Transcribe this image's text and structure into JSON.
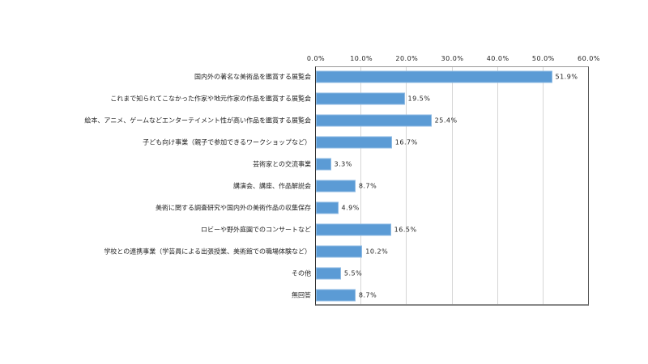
{
  "chart_data": {
    "type": "bar",
    "orientation": "horizontal",
    "title": "",
    "xlabel": "",
    "ylabel": "",
    "xlim": [
      0,
      60
    ],
    "x_ticks": [
      "0.0%",
      "10.0%",
      "20.0%",
      "30.0%",
      "40.0%",
      "50.0%",
      "60.0%"
    ],
    "x_tick_values": [
      0,
      10,
      20,
      30,
      40,
      50,
      60
    ],
    "x_axis_position": "top",
    "grid": true,
    "legend": null,
    "bar_color": "#5b9bd5",
    "categories": [
      "国内外の著名な美術品を鑑賞する展覧会",
      "これまで知られてこなかった作家や地元作家の作品を鑑賞する展覧会",
      "絵本、アニメ、ゲームなどエンターテイメント性が高い作品を鑑賞する展覧会",
      "子ども向け事業（親子で参加できるワークショップなど）",
      "芸術家との交流事業",
      "講演会、講座、作品解説会",
      "美術に関する調査研究や国内外の美術作品の収集保存",
      "ロビーや野外庭園でのコンサートなど",
      "学校との連携事業（学芸員による出張授業、美術館での職場体験など）",
      "その他",
      "無回答"
    ],
    "values": [
      51.9,
      19.5,
      25.4,
      16.7,
      3.3,
      8.7,
      4.9,
      16.5,
      10.2,
      5.5,
      8.7
    ],
    "value_labels": [
      "51.9%",
      "19.5%",
      "25.4%",
      "16.7%",
      "3.3%",
      "8.7%",
      "4.9%",
      "16.5%",
      "10.2%",
      "5.5%",
      "8.7%"
    ]
  }
}
